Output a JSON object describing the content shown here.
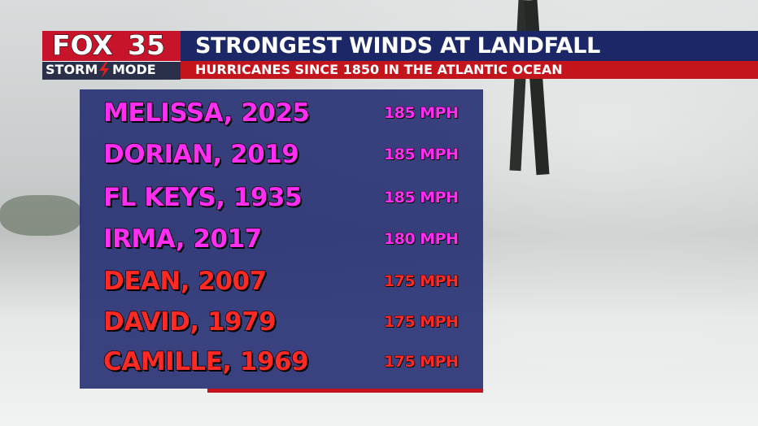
{
  "logo": {
    "brand": "FOX",
    "channel": "35",
    "mode_left": "STORM",
    "mode_right": "MODE"
  },
  "header": {
    "title": "STRONGEST WINDS AT LANDFALL",
    "subtitle": "HURRICANES SINCE 1850 IN THE ATLANTIC OCEAN"
  },
  "table": {
    "rows": [
      {
        "name": "MELISSA, 2025",
        "wind": "185 MPH",
        "color": "#ff2ef2"
      },
      {
        "name": "DORIAN, 2019",
        "wind": "185 MPH",
        "color": "#ff2ef2"
      },
      {
        "name": "FL KEYS, 1935",
        "wind": "185 MPH",
        "color": "#ff2ef2"
      },
      {
        "name": "IRMA, 2017",
        "wind": "180 MPH",
        "color": "#ff2ef2"
      },
      {
        "name": "DEAN, 2007",
        "wind": "175 MPH",
        "color": "#ff2a24"
      },
      {
        "name": "DAVID, 1979",
        "wind": "175 MPH",
        "color": "#ff2a24"
      },
      {
        "name": "CAMILLE, 1969",
        "wind": "175 MPH",
        "color": "#ff2a24"
      }
    ]
  }
}
